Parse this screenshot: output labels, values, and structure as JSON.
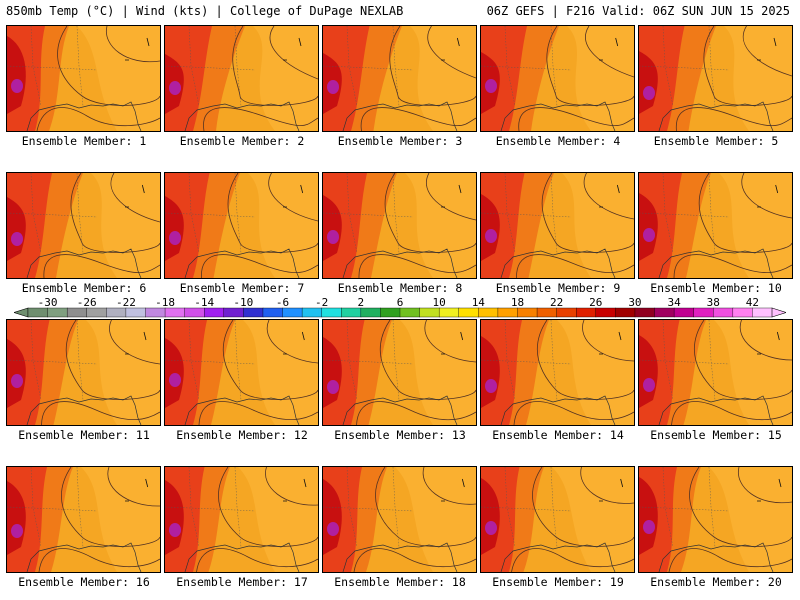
{
  "header": {
    "left": "850mb Temp (°C) | Wind (kts) | College of DuPage NEXLAB",
    "right": "06Z GEFS | F216 Valid: 06Z SUN JUN 15 2025"
  },
  "panels": [
    {
      "label": "Ensemble Member: 1"
    },
    {
      "label": "Ensemble Member: 2"
    },
    {
      "label": "Ensemble Member: 3"
    },
    {
      "label": "Ensemble Member: 4"
    },
    {
      "label": "Ensemble Member: 5"
    },
    {
      "label": "Ensemble Member: 6"
    },
    {
      "label": "Ensemble Member: 7"
    },
    {
      "label": "Ensemble Member: 8"
    },
    {
      "label": "Ensemble Member: 9"
    },
    {
      "label": "Ensemble Member: 10"
    },
    {
      "label": "Ensemble Member: 11"
    },
    {
      "label": "Ensemble Member: 12"
    },
    {
      "label": "Ensemble Member: 13"
    },
    {
      "label": "Ensemble Member: 14"
    },
    {
      "label": "Ensemble Member: 15"
    },
    {
      "label": "Ensemble Member: 16"
    },
    {
      "label": "Ensemble Member: 17"
    },
    {
      "label": "Ensemble Member: 18"
    },
    {
      "label": "Ensemble Member: 19"
    },
    {
      "label": "Ensemble Member: 20"
    }
  ],
  "colorbar": {
    "ticks": [
      "-30",
      "-26",
      "-22",
      "-18",
      "-14",
      "-10",
      "-6",
      "-2",
      "2",
      "6",
      "10",
      "14",
      "18",
      "22",
      "26",
      "30",
      "34",
      "38",
      "42"
    ],
    "colors": [
      "#6f8f6f",
      "#7f9f7f",
      "#8f8f8f",
      "#a0a0a0",
      "#b0b0c0",
      "#c0c0e0",
      "#c088e0",
      "#e070f0",
      "#d050e8",
      "#a020f0",
      "#7020d0",
      "#3030d0",
      "#2060f0",
      "#2090ff",
      "#20c0f0",
      "#20e0e0",
      "#20d0a0",
      "#20b060",
      "#30a020",
      "#70c020",
      "#c0e020",
      "#f0f020",
      "#ffe000",
      "#ffc000",
      "#ffa000",
      "#f88000",
      "#f06000",
      "#e84000",
      "#e02000",
      "#c80000",
      "#a00000",
      "#900020",
      "#a00060",
      "#c00090",
      "#e020c0",
      "#f050e0",
      "#ff80f0",
      "#ffc0ff"
    ]
  }
}
